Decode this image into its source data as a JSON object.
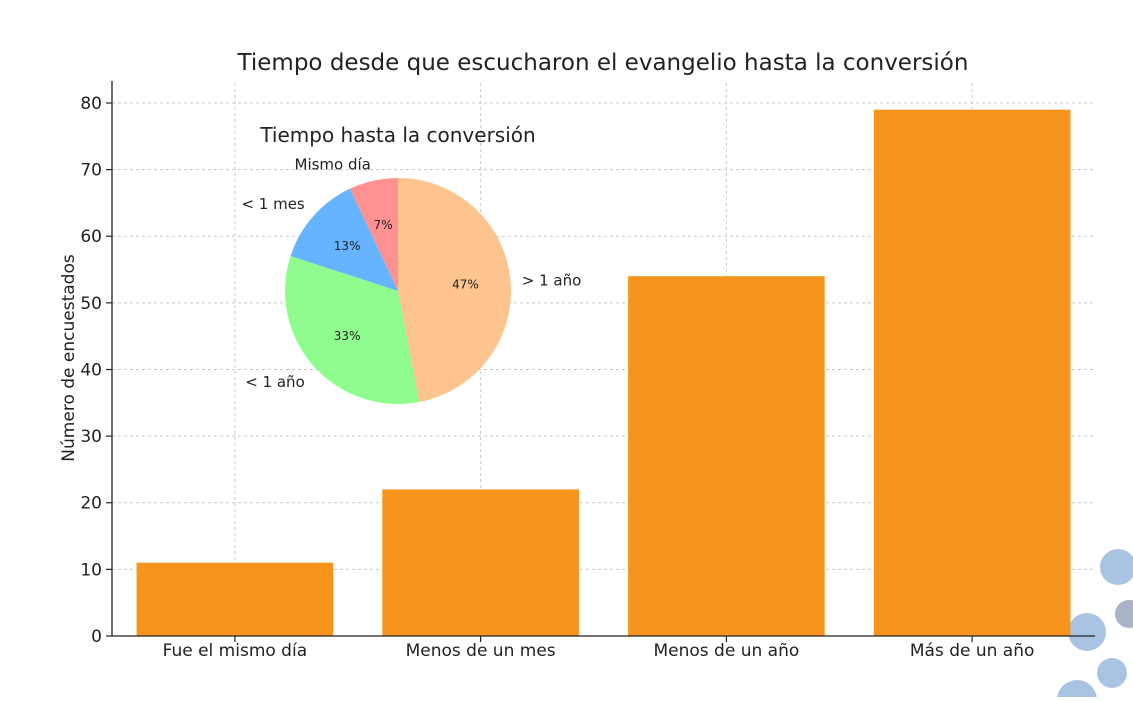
{
  "chart_data": [
    {
      "type": "bar",
      "title": "Tiempo desde que escucharon el evangelio hasta la conversión",
      "xlabel": "",
      "ylabel": "Número de encuestados",
      "categories": [
        "Fue el mismo día",
        "Menos de un mes",
        "Menos de un año",
        "Más de un año"
      ],
      "values": [
        11,
        22,
        54,
        79
      ],
      "ylim": [
        0,
        83
      ],
      "yticks": [
        0,
        10,
        20,
        30,
        40,
        50,
        60,
        70,
        80
      ],
      "grid": true,
      "bar_color": "#f7941d"
    },
    {
      "type": "pie",
      "title": "Tiempo hasta la conversión",
      "slices": [
        {
          "label": "Mismo día",
          "value": 7,
          "pct_label": "7%",
          "color": "#ff9191"
        },
        {
          "label": "< 1 mes",
          "value": 13,
          "pct_label": "13%",
          "color": "#66b3ff"
        },
        {
          "label": "< 1 año",
          "value": 33,
          "pct_label": "33%",
          "color": "#8ffc8f"
        },
        {
          "label": "> 1 año",
          "value": 47,
          "pct_label": "47%",
          "color": "#fdc490"
        }
      ]
    }
  ]
}
